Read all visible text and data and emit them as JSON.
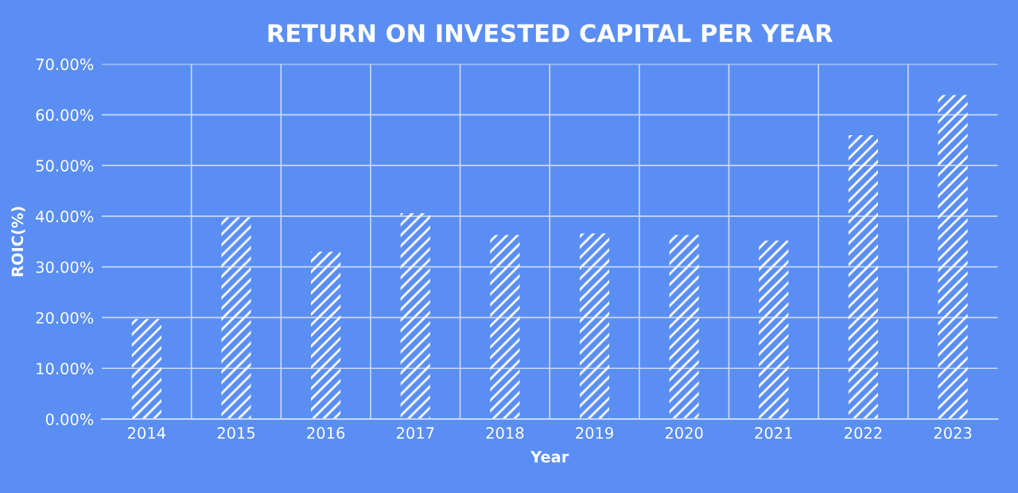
{
  "chart_data": {
    "type": "bar",
    "title": "RETURN ON INVESTED CAPITAL PER YEAR",
    "xlabel": "Year",
    "ylabel": "ROIC(%)",
    "categories": [
      "2014",
      "2015",
      "2016",
      "2017",
      "2018",
      "2019",
      "2020",
      "2021",
      "2022",
      "2023"
    ],
    "values": [
      19.7,
      39.8,
      33.0,
      40.6,
      36.3,
      36.6,
      36.3,
      35.2,
      56.0,
      63.9
    ],
    "color": "#ffffff",
    "ylim": [
      0,
      70
    ],
    "yticks": [
      {
        "value": 0,
        "label": "0.00%"
      },
      {
        "value": 10,
        "label": "10.00%"
      },
      {
        "value": 20,
        "label": "20.00%"
      },
      {
        "value": 30,
        "label": "30.00%"
      },
      {
        "value": 40,
        "label": "40.00%"
      },
      {
        "value": 50,
        "label": "50.00%"
      },
      {
        "value": 60,
        "label": "60.00%"
      },
      {
        "value": 70,
        "label": "70.00%"
      }
    ],
    "grid": true
  }
}
